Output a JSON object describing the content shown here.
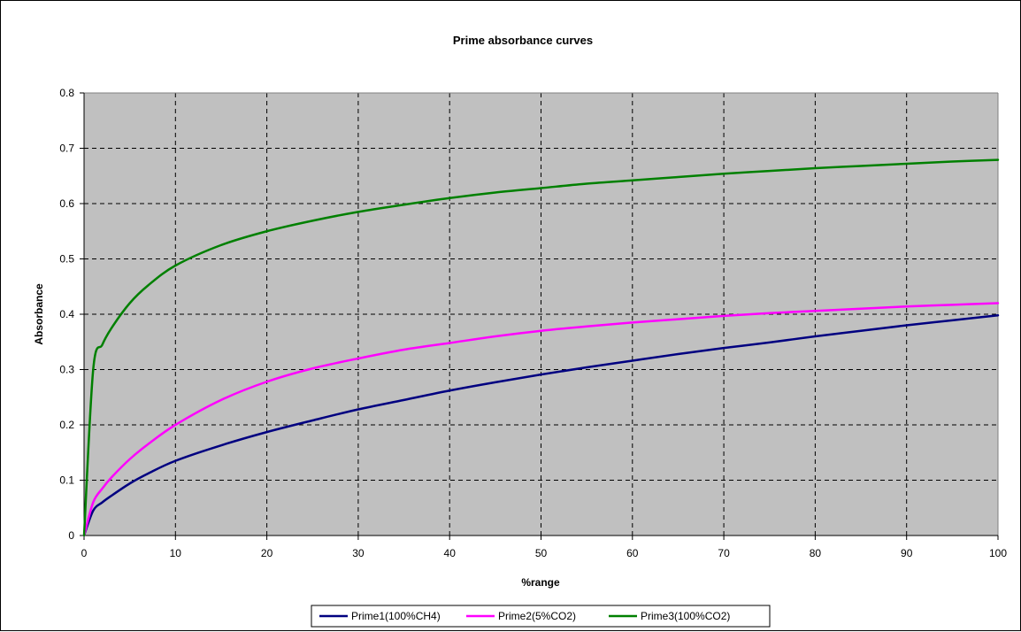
{
  "colors": {
    "plot_background": "#c0c0c0",
    "grid": "#000000",
    "axis": "#000000"
  },
  "chart_data": {
    "type": "line",
    "title": "Prime absorbance curves",
    "xlabel": "%range",
    "ylabel": "Absorbance",
    "xlim": [
      0,
      100
    ],
    "ylim": [
      0,
      0.8
    ],
    "x_ticks": [
      "0",
      "10",
      "20",
      "30",
      "40",
      "50",
      "60",
      "70",
      "80",
      "90",
      "100"
    ],
    "y_ticks": [
      "0",
      "0.1",
      "0.2",
      "0.3",
      "0.4",
      "0.5",
      "0.6",
      "0.7",
      "0.8"
    ],
    "grid": true,
    "grid_style": "dashed",
    "legend_position": "bottom",
    "x": [
      0,
      1,
      2,
      3,
      5,
      7,
      10,
      15,
      20,
      25,
      30,
      35,
      40,
      45,
      50,
      55,
      60,
      65,
      70,
      75,
      80,
      85,
      90,
      95,
      100
    ],
    "series": [
      {
        "name": "Prime1(100%CH4)",
        "color": "#000080",
        "values": [
          0,
          0.045,
          0.06,
          0.072,
          0.094,
          0.112,
          0.135,
          0.163,
          0.187,
          0.208,
          0.228,
          0.245,
          0.262,
          0.277,
          0.291,
          0.304,
          0.316,
          0.328,
          0.339,
          0.349,
          0.36,
          0.37,
          0.38,
          0.389,
          0.398
        ]
      },
      {
        "name": "Prime2(5%CO2)",
        "color": "#ff00ff",
        "values": [
          0,
          0.06,
          0.085,
          0.105,
          0.138,
          0.165,
          0.2,
          0.245,
          0.278,
          0.302,
          0.32,
          0.336,
          0.348,
          0.36,
          0.37,
          0.378,
          0.385,
          0.391,
          0.397,
          0.402,
          0.406,
          0.41,
          0.414,
          0.417,
          0.42
        ]
      },
      {
        "name": "Prime3(100%CO2)",
        "color": "#008000",
        "values": [
          0,
          0.3,
          0.345,
          0.375,
          0.42,
          0.452,
          0.488,
          0.525,
          0.55,
          0.569,
          0.585,
          0.598,
          0.61,
          0.62,
          0.628,
          0.636,
          0.642,
          0.648,
          0.654,
          0.659,
          0.664,
          0.668,
          0.672,
          0.676,
          0.679
        ]
      }
    ]
  }
}
